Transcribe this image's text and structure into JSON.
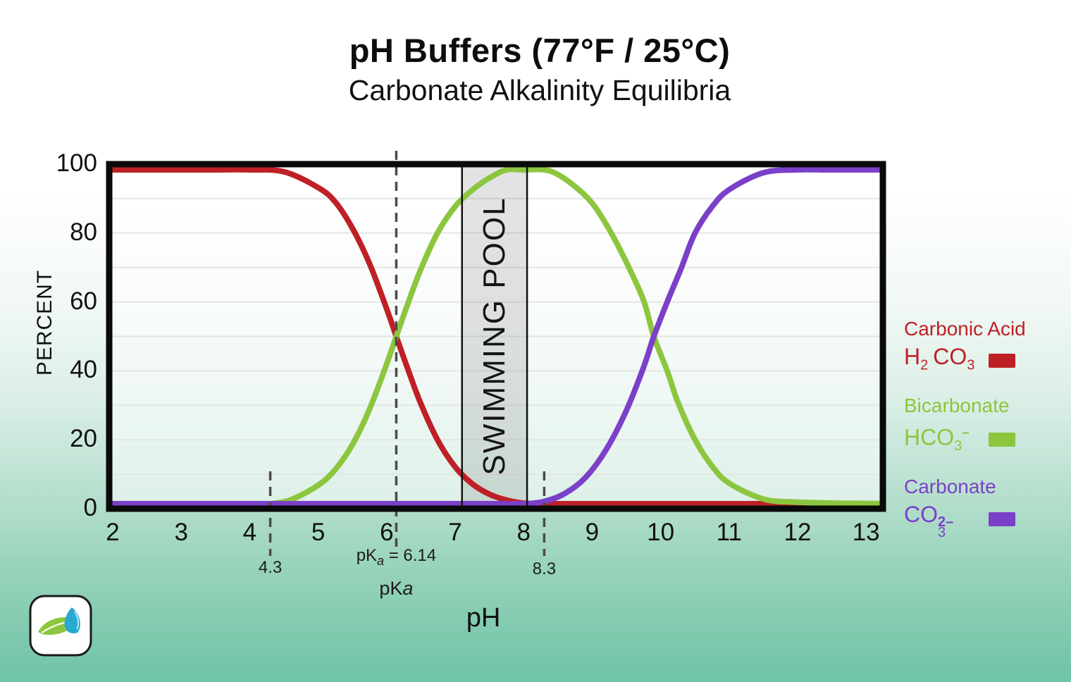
{
  "title": {
    "line1": "pH Buffers (77°F / 25°C)",
    "line2": "Carbonate Alkalinity Equilibria"
  },
  "axes": {
    "x_label": "pH",
    "y_label": "PERCENT",
    "x_ticks": [
      "2",
      "3",
      "4",
      "5",
      "6",
      "7",
      "8",
      "9",
      "10",
      "11",
      "12",
      "13"
    ],
    "y_ticks": [
      "0",
      "20",
      "40",
      "60",
      "80",
      "100"
    ]
  },
  "pool_band": {
    "label": "SWIMMING POOL",
    "from_ph": 7.1,
    "to_ph": 8.05,
    "fill": "rgba(100,100,100,0.18)"
  },
  "annotations": {
    "pka1_marker": {
      "ph": 4.3,
      "label": "4.3",
      "full_height": false
    },
    "pka_line": {
      "ph": 6.14,
      "prefix": "pK",
      "sub": "a",
      "rest": " = 6.14",
      "full_height": true
    },
    "pka2_marker": {
      "ph": 8.3,
      "label": "8.3",
      "full_height": false
    },
    "pka_axis_label": {
      "prefix": "pK",
      "italic": "a"
    },
    "dash_color": "#4b4b4b"
  },
  "legend": {
    "items": [
      {
        "name": "Carbonic Acid",
        "color": "#be2026",
        "f1": "H",
        "f1sub": "2",
        "f2": "CO",
        "f2sub": "3",
        "sup": ""
      },
      {
        "name": "Bicarbonate",
        "color": "#8cc63f",
        "f1": "HCO",
        "f1sub": "3",
        "f2": "",
        "f2sub": "",
        "sup": "–"
      },
      {
        "name": "Carbonate",
        "color": "#7b40c8",
        "f1": "CO",
        "f1sub": "3",
        "f2": "",
        "f2sub": "",
        "sup": "2–"
      }
    ]
  },
  "chart_data": {
    "type": "line",
    "title": "pH Buffers (77°F / 25°C) — Carbonate Alkalinity Equilibria",
    "xlabel": "pH",
    "ylabel": "PERCENT",
    "xlim": [
      2,
      13
    ],
    "ylim": [
      0,
      100
    ],
    "grid": true,
    "grid_step": 10,
    "legend_position": "right",
    "annotations": {
      "pK_markers_ph": [
        4.3,
        6.14,
        8.3
      ],
      "pKa_value": "pKa = 6.14",
      "swimming_pool_range_ph": [
        7.1,
        8.05
      ]
    },
    "series": [
      {
        "name": "Carbonic Acid H2CO3",
        "slug": "carbonic-acid-curve",
        "color": "#be2026",
        "points": [
          [
            1.95,
            100
          ],
          [
            3,
            100
          ],
          [
            3.5,
            99.8
          ],
          [
            4,
            99.3
          ],
          [
            4.5,
            97.8
          ],
          [
            5,
            93.2
          ],
          [
            5.25,
            89
          ],
          [
            5.5,
            81.4
          ],
          [
            5.75,
            71.1
          ],
          [
            6,
            58
          ],
          [
            6.14,
            50
          ],
          [
            6.3,
            41
          ],
          [
            6.5,
            30.4
          ],
          [
            6.75,
            19.7
          ],
          [
            7,
            12.1
          ],
          [
            7.25,
            7.2
          ],
          [
            7.5,
            4.2
          ],
          [
            7.75,
            2.5
          ],
          [
            8,
            1.6
          ],
          [
            8.3,
            1.2
          ],
          [
            8.7,
            1.3
          ],
          [
            9.5,
            1.4
          ],
          [
            10.5,
            1.4
          ],
          [
            11.5,
            1.3
          ],
          [
            12.2,
            1.2
          ],
          [
            12.7,
            0.8
          ],
          [
            13.2,
            0.4
          ]
        ]
      },
      {
        "name": "Bicarbonate HCO3-",
        "slug": "bicarbonate-curve",
        "color": "#8cc63f",
        "points": [
          [
            1.95,
            0.2
          ],
          [
            3.5,
            0.3
          ],
          [
            4,
            0.7
          ],
          [
            4.3,
            1.2
          ],
          [
            4.6,
            2.6
          ],
          [
            5,
            6.8
          ],
          [
            5.25,
            11.4
          ],
          [
            5.5,
            18.6
          ],
          [
            5.75,
            28.9
          ],
          [
            6,
            42
          ],
          [
            6.14,
            50
          ],
          [
            6.3,
            59
          ],
          [
            6.5,
            69.6
          ],
          [
            6.75,
            80.3
          ],
          [
            7,
            87.7
          ],
          [
            7.25,
            92.5
          ],
          [
            7.5,
            96
          ],
          [
            7.75,
            98.8
          ],
          [
            8,
            100
          ],
          [
            8.3,
            99.2
          ],
          [
            8.5,
            97
          ],
          [
            8.75,
            93.5
          ],
          [
            9,
            88.7
          ],
          [
            9.25,
            81
          ],
          [
            9.5,
            71.5
          ],
          [
            9.75,
            60.5
          ],
          [
            9.9,
            50
          ],
          [
            10.1,
            39.8
          ],
          [
            10.25,
            31
          ],
          [
            10.5,
            20.1
          ],
          [
            10.75,
            12.4
          ],
          [
            11,
            7.4
          ],
          [
            11.5,
            2.8
          ],
          [
            12,
            1.9
          ],
          [
            12.6,
            1.6
          ],
          [
            13.2,
            1.5
          ]
        ]
      },
      {
        "name": "Carbonate CO3 2-",
        "slug": "carbonate-curve",
        "color": "#7b40c8",
        "points": [
          [
            1.95,
            0.5
          ],
          [
            6.5,
            0.5
          ],
          [
            7.2,
            0.6
          ],
          [
            7.6,
            0.8
          ],
          [
            8,
            1.2
          ],
          [
            8.3,
            2.1
          ],
          [
            8.6,
            4.4
          ],
          [
            8.9,
            9
          ],
          [
            9.2,
            17
          ],
          [
            9.5,
            28.5
          ],
          [
            9.75,
            41
          ],
          [
            9.9,
            50
          ],
          [
            10.1,
            60.2
          ],
          [
            10.3,
            69.8
          ],
          [
            10.5,
            79.9
          ],
          [
            10.75,
            87.6
          ],
          [
            11,
            92.6
          ],
          [
            11.5,
            97.5
          ],
          [
            12,
            99.2
          ],
          [
            12.5,
            99.8
          ],
          [
            13.2,
            100
          ]
        ]
      }
    ]
  }
}
